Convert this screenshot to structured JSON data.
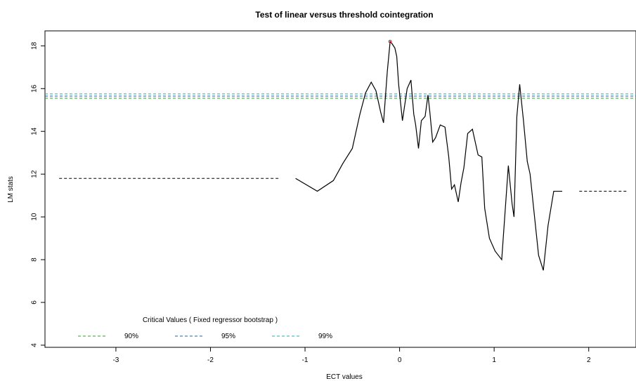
{
  "chart_data": {
    "type": "line",
    "title": "Test of linear versus threshold cointegration",
    "xlabel": "ECT values",
    "ylabel": "LM stats",
    "xlim": [
      -3.75,
      2.5
    ],
    "ylim": [
      3.9,
      18.7
    ],
    "x_ticks": [
      -3,
      -2,
      -1,
      0,
      1,
      2
    ],
    "y_ticks": [
      4,
      6,
      8,
      10,
      12,
      14,
      16,
      18
    ],
    "grid": false,
    "legend": {
      "title": "Critical Values ( Fixed regressor bootstrap )",
      "position": "bottom-left",
      "entries": [
        {
          "label": "90%",
          "color": "#2ca02c"
        },
        {
          "label": "95%",
          "color": "#1f5fa8"
        },
        {
          "label": "99%",
          "color": "#20b2aa"
        }
      ]
    },
    "critical_values": [
      {
        "name": "90%",
        "value": 15.55,
        "color": "#2ca02c"
      },
      {
        "name": "95%",
        "value": 15.65,
        "color": "#1f5fa8"
      },
      {
        "name": "99%",
        "value": 15.75,
        "color": "#20b2aa"
      }
    ],
    "segments": [
      {
        "name": "lower",
        "x": [
          -3.6,
          -1.28
        ],
        "y": [
          11.8,
          11.8
        ],
        "dashed": true,
        "color": "#000000"
      },
      {
        "name": "upper",
        "x": [
          1.9,
          2.4
        ],
        "y": [
          11.2,
          11.2
        ],
        "dashed": true,
        "color": "#000000"
      }
    ],
    "series": [
      {
        "color": "#000000",
        "x": [
          -1.1,
          -0.87,
          -0.7,
          -0.6,
          -0.5,
          -0.42,
          -0.36,
          -0.3,
          -0.25,
          -0.2,
          -0.17,
          -0.13,
          -0.1,
          -0.08,
          -0.05,
          -0.03,
          -0.01,
          0.03,
          0.05,
          0.08,
          0.12,
          0.15,
          0.17,
          0.2,
          0.23,
          0.27,
          0.3,
          0.32,
          0.35,
          0.38,
          0.43,
          0.48,
          0.52,
          0.55,
          0.58,
          0.62,
          0.65,
          0.68,
          0.72,
          0.77,
          0.83,
          0.87,
          0.9,
          0.95,
          1.01,
          1.08,
          1.15,
          1.19,
          1.21,
          1.24,
          1.27,
          1.31,
          1.35,
          1.38,
          1.42,
          1.47,
          1.52,
          1.57,
          1.63,
          1.68,
          1.72
        ],
        "y": [
          11.8,
          11.2,
          11.7,
          12.5,
          13.2,
          14.8,
          15.8,
          16.3,
          15.9,
          14.9,
          14.4,
          16.8,
          18.2,
          18.1,
          17.9,
          17.5,
          16.2,
          14.5,
          15.1,
          16.0,
          16.4,
          14.8,
          14.3,
          13.2,
          14.5,
          14.7,
          15.7,
          14.9,
          13.5,
          13.7,
          14.3,
          14.2,
          12.8,
          11.3,
          11.5,
          10.7,
          11.6,
          12.3,
          13.9,
          14.1,
          12.9,
          12.8,
          10.4,
          9.0,
          8.4,
          8.0,
          12.4,
          10.6,
          10.0,
          14.7,
          16.2,
          14.5,
          12.6,
          12.0,
          10.3,
          8.2,
          7.5,
          9.6,
          11.2,
          11.2,
          11.2
        ]
      }
    ],
    "max_point": {
      "x": -0.1,
      "y": 18.2,
      "color": "#e0202a"
    }
  }
}
